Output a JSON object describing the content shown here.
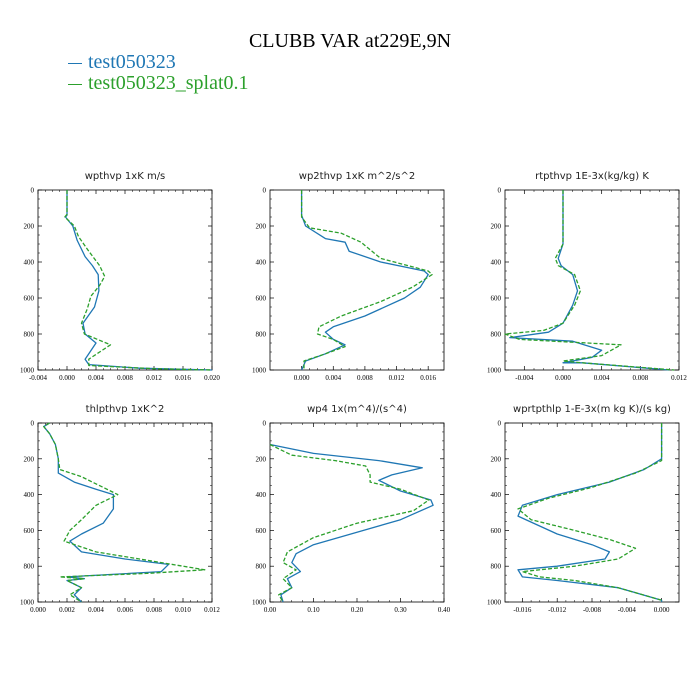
{
  "figure": {
    "title": "CLUBB VAR at229E,9N",
    "legend": [
      {
        "label": "test050323",
        "color": "#1f77b4",
        "dash": "solid"
      },
      {
        "label": "test050323_splat0.1",
        "color": "#2ca02c",
        "dash": "dashed"
      }
    ]
  },
  "chart_data": [
    {
      "type": "line",
      "title": "wpthvp  1xK m/s",
      "xlim": [
        -0.004,
        0.02
      ],
      "xticks": [
        -0.004,
        0.0,
        0.004,
        0.008,
        0.012,
        0.016,
        0.02
      ],
      "xtick_labels": [
        "-0.004",
        "0.000",
        "0.004",
        "0.008",
        "0.012",
        "0.016",
        "0.020"
      ],
      "ylim": [
        1000,
        0
      ],
      "yticks": [
        0,
        200,
        400,
        600,
        800,
        1000
      ],
      "series": [
        {
          "name": "test050323",
          "points": [
            [
              0.0,
              0
            ],
            [
              0.0,
              140
            ],
            [
              -0.0002,
              150
            ],
            [
              0.0008,
              200
            ],
            [
              0.0014,
              280
            ],
            [
              0.0025,
              370
            ],
            [
              0.0035,
              420
            ],
            [
              0.0043,
              470
            ],
            [
              0.0044,
              560
            ],
            [
              0.0038,
              650
            ],
            [
              0.0022,
              740
            ],
            [
              0.0025,
              800
            ],
            [
              0.004,
              850
            ],
            [
              0.0025,
              940
            ],
            [
              0.003,
              970
            ],
            [
              0.01,
              990
            ],
            [
              0.02,
              1000
            ]
          ]
        },
        {
          "name": "test050323_splat0.1",
          "points": [
            [
              0.0,
              0
            ],
            [
              0.0,
              135
            ],
            [
              -0.0003,
              150
            ],
            [
              0.001,
              200
            ],
            [
              0.0016,
              260
            ],
            [
              0.003,
              340
            ],
            [
              0.0045,
              420
            ],
            [
              0.0052,
              480
            ],
            [
              0.0045,
              530
            ],
            [
              0.0033,
              590
            ],
            [
              0.0028,
              660
            ],
            [
              0.002,
              740
            ],
            [
              0.0024,
              800
            ],
            [
              0.006,
              860
            ],
            [
              0.003,
              940
            ],
            [
              0.003,
              975
            ],
            [
              0.012,
              993
            ],
            [
              0.02,
              1000
            ]
          ]
        }
      ]
    },
    {
      "type": "line",
      "title": "wp2thvp  1xK m^2/s^2",
      "xlim": [
        -0.004,
        0.018
      ],
      "xticks": [
        0.0,
        0.004,
        0.008,
        0.012,
        0.016
      ],
      "xtick_labels": [
        "0.000",
        "0.004",
        "0.008",
        "0.012",
        "0.016"
      ],
      "ylim": [
        1000,
        0
      ],
      "yticks": [
        0,
        200,
        400,
        600,
        800,
        1000
      ],
      "series": [
        {
          "name": "test050323",
          "points": [
            [
              0.0,
              0
            ],
            [
              0.0,
              140
            ],
            [
              0.0005,
              200
            ],
            [
              0.003,
              270
            ],
            [
              0.0055,
              290
            ],
            [
              0.006,
              340
            ],
            [
              0.01,
              400
            ],
            [
              0.0155,
              450
            ],
            [
              0.016,
              470
            ],
            [
              0.015,
              540
            ],
            [
              0.013,
              600
            ],
            [
              0.008,
              700
            ],
            [
              0.004,
              760
            ],
            [
              0.003,
              790
            ],
            [
              0.004,
              830
            ],
            [
              0.0055,
              860
            ],
            [
              0.003,
              910
            ],
            [
              0.0005,
              950
            ],
            [
              0.0,
              1000
            ]
          ]
        },
        {
          "name": "test050323_splat0.1",
          "points": [
            [
              0.0,
              0
            ],
            [
              0.0,
              150
            ],
            [
              0.001,
              210
            ],
            [
              0.005,
              240
            ],
            [
              0.0075,
              290
            ],
            [
              0.01,
              380
            ],
            [
              0.016,
              450
            ],
            [
              0.0165,
              470
            ],
            [
              0.014,
              540
            ],
            [
              0.01,
              620
            ],
            [
              0.005,
              700
            ],
            [
              0.0022,
              760
            ],
            [
              0.002,
              800
            ],
            [
              0.004,
              830
            ],
            [
              0.0055,
              870
            ],
            [
              0.003,
              910
            ],
            [
              0.0003,
              950
            ],
            [
              0.0003,
              1000
            ]
          ]
        }
      ]
    },
    {
      "type": "line",
      "title": "rtpthvp  1E-3x(kg/kg) K",
      "xlim": [
        -0.006,
        0.012
      ],
      "xticks": [
        -0.004,
        0.0,
        0.004,
        0.008,
        0.012
      ],
      "xtick_labels": [
        "-0.004",
        "0.000",
        "0.004",
        "0.008",
        "0.012"
      ],
      "ylim": [
        1000,
        0
      ],
      "yticks": [
        0,
        200,
        400,
        600,
        800,
        1000
      ],
      "series": [
        {
          "name": "test050323",
          "points": [
            [
              0.0,
              0
            ],
            [
              0.0,
              300
            ],
            [
              -0.0005,
              380
            ],
            [
              -0.0002,
              420
            ],
            [
              0.001,
              470
            ],
            [
              0.0015,
              560
            ],
            [
              0.001,
              640
            ],
            [
              0.0,
              740
            ],
            [
              -0.0015,
              790
            ],
            [
              -0.0055,
              820
            ],
            [
              0.001,
              840
            ],
            [
              0.004,
              890
            ],
            [
              0.003,
              930
            ],
            [
              0.0,
              960
            ],
            [
              0.002,
              960
            ],
            [
              0.011,
              1000
            ]
          ]
        },
        {
          "name": "test050323_splat0.1",
          "points": [
            [
              0.0,
              0
            ],
            [
              0.0,
              300
            ],
            [
              -0.0008,
              380
            ],
            [
              -0.0005,
              420
            ],
            [
              0.0012,
              470
            ],
            [
              0.0018,
              560
            ],
            [
              0.0012,
              640
            ],
            [
              0.0,
              740
            ],
            [
              -0.002,
              780
            ],
            [
              -0.006,
              800
            ],
            [
              -0.0045,
              830
            ],
            [
              0.006,
              860
            ],
            [
              0.004,
              920
            ],
            [
              0.0,
              950
            ],
            [
              0.002,
              960
            ],
            [
              0.0115,
              1000
            ]
          ]
        }
      ]
    },
    {
      "type": "line",
      "title": "thlpthvp  1xK^2",
      "xlim": [
        0.0,
        0.012
      ],
      "xticks": [
        0.0,
        0.002,
        0.004,
        0.006,
        0.008,
        0.01,
        0.012
      ],
      "xtick_labels": [
        "0.000",
        "0.002",
        "0.004",
        "0.006",
        "0.008",
        "0.010",
        "0.012"
      ],
      "ylim": [
        1000,
        0
      ],
      "yticks": [
        0,
        200,
        400,
        600,
        800,
        1000
      ],
      "series": [
        {
          "name": "test050323",
          "points": [
            [
              0.0008,
              0
            ],
            [
              0.0004,
              20
            ],
            [
              0.0008,
              60
            ],
            [
              0.0012,
              120
            ],
            [
              0.0014,
              200
            ],
            [
              0.0014,
              280
            ],
            [
              0.0025,
              330
            ],
            [
              0.004,
              370
            ],
            [
              0.0052,
              400
            ],
            [
              0.0052,
              480
            ],
            [
              0.0045,
              560
            ],
            [
              0.003,
              620
            ],
            [
              0.0022,
              660
            ],
            [
              0.003,
              720
            ],
            [
              0.006,
              760
            ],
            [
              0.009,
              790
            ],
            [
              0.0085,
              830
            ],
            [
              0.002,
              860
            ],
            [
              0.0032,
              870
            ],
            [
              0.002,
              880
            ],
            [
              0.003,
              920
            ],
            [
              0.0025,
              960
            ],
            [
              0.003,
              1000
            ]
          ]
        },
        {
          "name": "test050323_splat0.1",
          "points": [
            [
              0.0008,
              0
            ],
            [
              0.0004,
              20
            ],
            [
              0.0008,
              60
            ],
            [
              0.0012,
              120
            ],
            [
              0.0014,
              200
            ],
            [
              0.0015,
              260
            ],
            [
              0.003,
              300
            ],
            [
              0.0045,
              360
            ],
            [
              0.0055,
              400
            ],
            [
              0.004,
              460
            ],
            [
              0.003,
              540
            ],
            [
              0.0022,
              600
            ],
            [
              0.0018,
              660
            ],
            [
              0.004,
              720
            ],
            [
              0.007,
              760
            ],
            [
              0.0115,
              820
            ],
            [
              0.0075,
              840
            ],
            [
              0.0015,
              860
            ],
            [
              0.0032,
              870
            ],
            [
              0.002,
              880
            ],
            [
              0.003,
              920
            ],
            [
              0.0022,
              960
            ],
            [
              0.003,
              1000
            ]
          ]
        }
      ]
    },
    {
      "type": "line",
      "title": "wp4  1x(m^4)/(s^4)",
      "xlim": [
        0.0,
        0.4
      ],
      "xticks": [
        0.0,
        0.1,
        0.2,
        0.3,
        0.4
      ],
      "xtick_labels": [
        "0.00",
        "0.10",
        "0.20",
        "0.30",
        "0.40"
      ],
      "ylim": [
        1000,
        0
      ],
      "yticks": [
        0,
        200,
        400,
        600,
        800,
        1000
      ],
      "series": [
        {
          "name": "test050323",
          "points": [
            [
              0.0,
              120
            ],
            [
              0.1,
              170
            ],
            [
              0.25,
              210
            ],
            [
              0.35,
              250
            ],
            [
              0.28,
              290
            ],
            [
              0.25,
              320
            ],
            [
              0.3,
              380
            ],
            [
              0.37,
              430
            ],
            [
              0.375,
              460
            ],
            [
              0.3,
              540
            ],
            [
              0.2,
              610
            ],
            [
              0.1,
              680
            ],
            [
              0.06,
              730
            ],
            [
              0.05,
              780
            ],
            [
              0.07,
              830
            ],
            [
              0.04,
              870
            ],
            [
              0.05,
              920
            ],
            [
              0.025,
              960
            ],
            [
              0.03,
              1000
            ]
          ]
        },
        {
          "name": "test050323_splat0.1",
          "points": [
            [
              0.0,
              120
            ],
            [
              0.05,
              180
            ],
            [
              0.15,
              210
            ],
            [
              0.22,
              240
            ],
            [
              0.23,
              290
            ],
            [
              0.23,
              330
            ],
            [
              0.3,
              370
            ],
            [
              0.365,
              430
            ],
            [
              0.33,
              490
            ],
            [
              0.2,
              560
            ],
            [
              0.1,
              640
            ],
            [
              0.04,
              720
            ],
            [
              0.03,
              780
            ],
            [
              0.06,
              820
            ],
            [
              0.03,
              870
            ],
            [
              0.05,
              920
            ],
            [
              0.02,
              960
            ],
            [
              0.03,
              1000
            ]
          ]
        }
      ]
    },
    {
      "type": "line",
      "title": "wprtpthlp  1-E-3x(m kg K)/(s kg)",
      "xlim": [
        -0.018,
        0.002
      ],
      "xticks": [
        -0.016,
        -0.012,
        -0.008,
        -0.004,
        0.0
      ],
      "xtick_labels": [
        "-0.016",
        "-0.012",
        "-0.008",
        "-0.004",
        "0.000"
      ],
      "ylim": [
        1000,
        0
      ],
      "yticks": [
        0,
        200,
        400,
        600,
        800,
        1000
      ],
      "series": [
        {
          "name": "test050323",
          "points": [
            [
              0.0,
              0
            ],
            [
              0.0,
              200
            ],
            [
              -0.002,
              260
            ],
            [
              -0.006,
              330
            ],
            [
              -0.012,
              400
            ],
            [
              -0.016,
              460
            ],
            [
              -0.0165,
              520
            ],
            [
              -0.012,
              620
            ],
            [
              -0.008,
              680
            ],
            [
              -0.006,
              720
            ],
            [
              -0.0065,
              760
            ],
            [
              -0.012,
              800
            ],
            [
              -0.0165,
              820
            ],
            [
              -0.016,
              860
            ],
            [
              -0.012,
              880
            ],
            [
              -0.005,
              920
            ],
            [
              0.0,
              990
            ],
            [
              0.0,
              1000
            ]
          ]
        },
        {
          "name": "test050323_splat0.1",
          "points": [
            [
              0.0,
              0
            ],
            [
              0.0,
              210
            ],
            [
              -0.003,
              280
            ],
            [
              -0.008,
              360
            ],
            [
              -0.013,
              420
            ],
            [
              -0.0165,
              480
            ],
            [
              -0.015,
              540
            ],
            [
              -0.01,
              600
            ],
            [
              -0.006,
              650
            ],
            [
              -0.003,
              700
            ],
            [
              -0.005,
              760
            ],
            [
              -0.01,
              800
            ],
            [
              -0.016,
              830
            ],
            [
              -0.014,
              860
            ],
            [
              -0.01,
              880
            ],
            [
              -0.005,
              920
            ],
            [
              0.0,
              990
            ],
            [
              0.0,
              1000
            ]
          ]
        }
      ]
    }
  ]
}
